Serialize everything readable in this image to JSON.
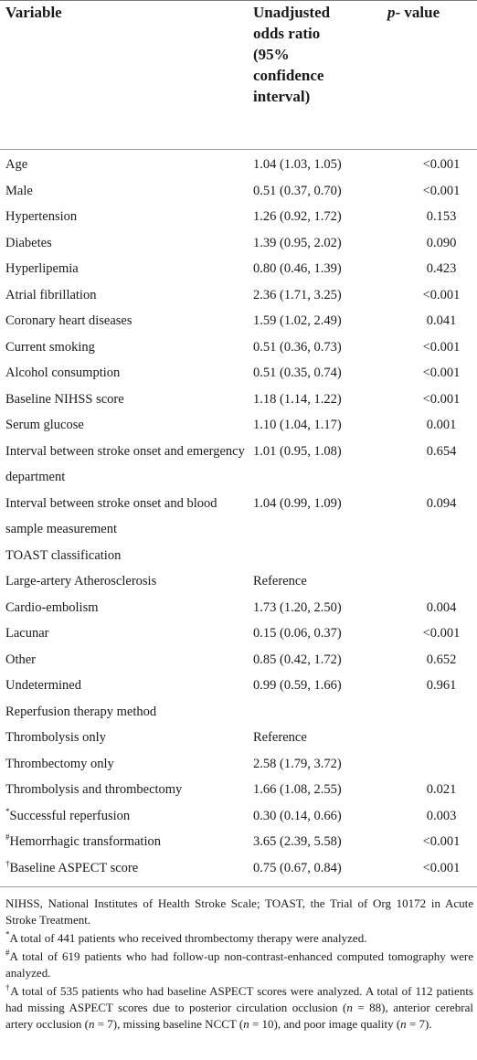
{
  "table": {
    "headers": {
      "variable": "Variable",
      "or_lines": [
        "Unadjusted",
        "odds ratio",
        "(95%",
        "confidence",
        "interval)"
      ],
      "p_italic": "p",
      "p_rest": "- value"
    },
    "rows": [
      {
        "label": "Age",
        "mark": "",
        "or": "1.04 (1.03, 1.05)",
        "p": "<0.001"
      },
      {
        "label": "Male",
        "mark": "",
        "or": "0.51 (0.37, 0.70)",
        "p": "<0.001"
      },
      {
        "label": "Hypertension",
        "mark": "",
        "or": "1.26 (0.92, 1.72)",
        "p": "0.153"
      },
      {
        "label": "Diabetes",
        "mark": "",
        "or": "1.39 (0.95, 2.02)",
        "p": "0.090"
      },
      {
        "label": "Hyperlipemia",
        "mark": "",
        "or": "0.80 (0.46, 1.39)",
        "p": "0.423"
      },
      {
        "label": "Atrial fibrillation",
        "mark": "",
        "or": "2.36 (1.71, 3.25)",
        "p": "<0.001"
      },
      {
        "label": "Coronary heart diseases",
        "mark": "",
        "or": "1.59 (1.02, 2.49)",
        "p": "0.041"
      },
      {
        "label": "Current smoking",
        "mark": "",
        "or": "0.51 (0.36, 0.73)",
        "p": "<0.001"
      },
      {
        "label": "Alcohol consumption",
        "mark": "",
        "or": "0.51 (0.35, 0.74)",
        "p": "<0.001"
      },
      {
        "label": "Baseline NIHSS score",
        "mark": "",
        "or": "1.18 (1.14, 1.22)",
        "p": "<0.001"
      },
      {
        "label": "Serum glucose",
        "mark": "",
        "or": "1.10 (1.04, 1.17)",
        "p": "0.001"
      },
      {
        "label": "Interval between stroke onset and emergency department",
        "mark": "",
        "or": "1.01 (0.95, 1.08)",
        "p": "0.654"
      },
      {
        "label": "Interval between stroke onset and blood sample measurement",
        "mark": "",
        "or": "1.04 (0.99, 1.09)",
        "p": "0.094"
      },
      {
        "label": "TOAST classification",
        "mark": "",
        "or": "",
        "p": ""
      },
      {
        "label": "Large-artery Atherosclerosis",
        "mark": "",
        "or": "Reference",
        "p": ""
      },
      {
        "label": "Cardio-embolism",
        "mark": "",
        "or": "1.73 (1.20, 2.50)",
        "p": "0.004"
      },
      {
        "label": "Lacunar",
        "mark": "",
        "or": "0.15 (0.06, 0.37)",
        "p": "<0.001"
      },
      {
        "label": "Other",
        "mark": "",
        "or": "0.85 (0.42, 1.72)",
        "p": "0.652"
      },
      {
        "label": "Undetermined",
        "mark": "",
        "or": "0.99 (0.59, 1.66)",
        "p": "0.961"
      },
      {
        "label": "Reperfusion therapy method",
        "mark": "",
        "or": "",
        "p": ""
      },
      {
        "label": "Thrombolysis only",
        "mark": "",
        "or": "Reference",
        "p": ""
      },
      {
        "label": "Thrombectomy only",
        "mark": "",
        "or": "2.58 (1.79, 3.72)",
        "p": ""
      },
      {
        "label": "Thrombolysis and thrombectomy",
        "mark": "",
        "or": "1.66 (1.08, 2.55)",
        "p": "0.021"
      },
      {
        "label": "Successful reperfusion",
        "mark": "*",
        "or": "0.30 (0.14, 0.66)",
        "p": "0.003"
      },
      {
        "label": "Hemorrhagic transformation",
        "mark": "#",
        "or": "3.65 (2.39, 5.58)",
        "p": "<0.001"
      },
      {
        "label": "Baseline ASPECT score",
        "mark": "†",
        "or": "0.75 (0.67, 0.84)",
        "p": "<0.001"
      }
    ]
  },
  "footnotes": {
    "abbrev": "NIHSS, National Institutes of Health Stroke Scale; TOAST, the Trial of Org 10172 in Acute Stroke Treatment.",
    "star_mark": "*",
    "star_text": "A total of 441 patients who received thrombectomy therapy were analyzed.",
    "hash_mark": "#",
    "hash_text": "A total of 619 patients who had follow-up non-contrast-enhanced computed tomography were analyzed.",
    "dagger_mark": "†",
    "dagger_p1": "A total of 535 patients who had baseline ASPECT scores were analyzed. A total of 112 patients had missing ASPECT scores due to posterior circulation occlusion (",
    "n_var": "n",
    "dagger_v1": " = 88), anterior cerebral artery occlusion (",
    "dagger_v2": " = 7), missing baseline NCCT (",
    "dagger_v3": " = 10), and poor image quality (",
    "dagger_v4": " = 7)."
  }
}
